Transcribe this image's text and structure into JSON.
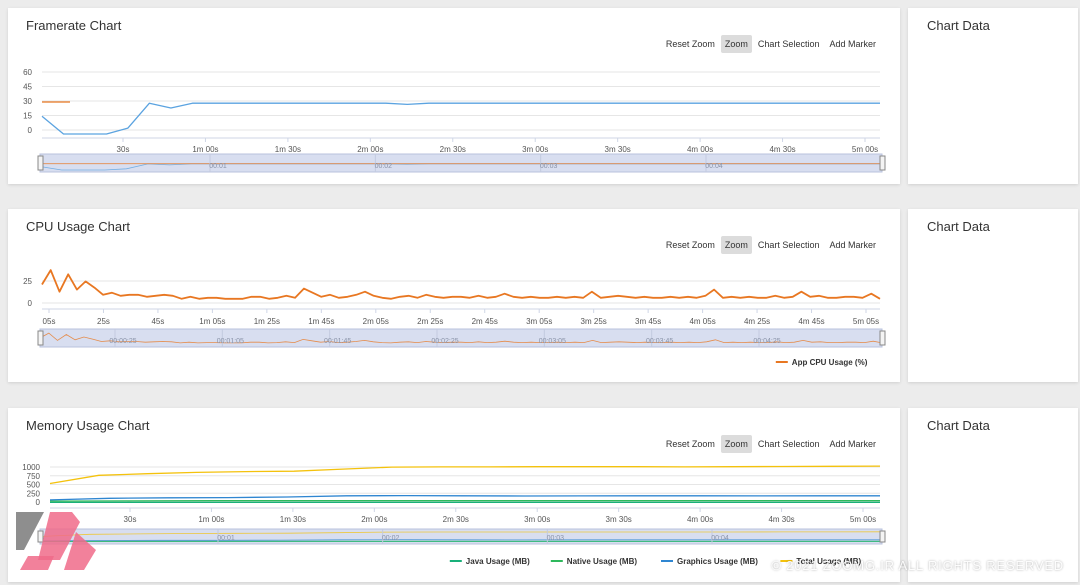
{
  "toolbar": {
    "reset": "Reset Zoom",
    "zoom": "Zoom",
    "selection": "Chart Selection",
    "marker": "Add Marker"
  },
  "side_panel_title": "Chart Data",
  "watermark": "© 2021 ZOOMG.IR ALL RIGHTS RESERVED",
  "chart_data": [
    {
      "type": "line",
      "title": "Framerate Chart",
      "xlabel": "",
      "ylabel": "",
      "y_ticks": [
        "60",
        "45",
        "30",
        "15",
        "0"
      ],
      "ylim": [
        0,
        60
      ],
      "x_ticks": [
        "30s",
        "1m 00s",
        "1m 30s",
        "2m 00s",
        "2m 30s",
        "3m 00s",
        "3m 30s",
        "4m 00s",
        "4m 30s",
        "5m 00s"
      ],
      "navigator_ticks": [
        "00:01",
        "00:02",
        "00:03",
        "00:04"
      ],
      "grid": true,
      "legend": [],
      "series": [
        {
          "color": "#5ba3e0",
          "values": [
            15,
            0,
            0,
            0,
            5,
            26,
            22,
            26,
            26,
            26,
            26,
            26,
            26,
            26,
            26,
            26,
            26,
            25,
            26,
            26,
            26,
            26,
            26,
            26,
            26,
            26,
            26,
            26,
            26,
            26,
            26,
            26,
            26,
            26,
            26,
            26,
            26,
            26,
            26,
            26
          ]
        },
        {
          "color": "#e87722",
          "values": [
            27,
            27,
            27,
            27,
            27
          ]
        }
      ]
    },
    {
      "type": "line",
      "title": "CPU Usage Chart",
      "xlabel": "",
      "ylabel": "",
      "y_ticks": [
        "25",
        "0"
      ],
      "ylim": [
        0,
        40
      ],
      "x_ticks": [
        "05s",
        "25s",
        "45s",
        "1m 05s",
        "1m 25s",
        "1m 45s",
        "2m 05s",
        "2m 25s",
        "2m 45s",
        "3m 05s",
        "3m 25s",
        "3m 45s",
        "4m 05s",
        "4m 25s",
        "4m 45s",
        "5m 05s"
      ],
      "navigator_ticks": [
        "00:00:25",
        "00:01:05",
        "00:01:45",
        "00:02:25",
        "00:03:05",
        "00:03:45",
        "00:04:25"
      ],
      "grid": true,
      "legend": [
        "App CPU Usage (%)"
      ],
      "series": [
        {
          "name": "App CPU Usage (%)",
          "color": "#e87722",
          "values": [
            20,
            34,
            13,
            30,
            15,
            23,
            17,
            10,
            12,
            9,
            10,
            10,
            8,
            9,
            10,
            9,
            6,
            8,
            6,
            7,
            7,
            6,
            6,
            6,
            8,
            8,
            6,
            7,
            9,
            7,
            16,
            12,
            8,
            10,
            7,
            8,
            10,
            13,
            9,
            7,
            6,
            8,
            9,
            7,
            10,
            8,
            7,
            8,
            8,
            7,
            9,
            7,
            8,
            11,
            8,
            7,
            8,
            7,
            7,
            8,
            7,
            8,
            7,
            13,
            7,
            8,
            9,
            8,
            7,
            8,
            7,
            7,
            8,
            7,
            8,
            7,
            9,
            15,
            7,
            8,
            7,
            8,
            7,
            7,
            9,
            7,
            8,
            13,
            8,
            9,
            7,
            7,
            8,
            8,
            7,
            11,
            6
          ]
        }
      ]
    },
    {
      "type": "line",
      "title": "Memory Usage Chart",
      "xlabel": "",
      "ylabel": "",
      "y_ticks": [
        "1000",
        "750",
        "500",
        "250",
        "0"
      ],
      "ylim": [
        0,
        1000
      ],
      "x_ticks": [
        "30s",
        "1m 00s",
        "1m 30s",
        "2m 00s",
        "2m 30s",
        "3m 00s",
        "3m 30s",
        "4m 00s",
        "4m 30s",
        "5m 00s"
      ],
      "navigator_ticks": [
        "00:01",
        "00:02",
        "00:03",
        "00:04"
      ],
      "grid": true,
      "legend": [
        "Java Usage (MB)",
        "Native Usage (MB)",
        "Graphics Usage (MB)",
        "Total Usage (MB)"
      ],
      "series": [
        {
          "name": "Java Usage (MB)",
          "color": "#19b07a",
          "values": [
            40,
            40,
            40,
            40,
            40,
            40,
            40,
            40,
            40,
            40,
            40
          ]
        },
        {
          "name": "Native Usage (MB)",
          "color": "#2eb85c",
          "values": [
            70,
            75,
            80,
            80,
            80,
            80,
            80,
            80,
            80,
            80,
            80
          ]
        },
        {
          "name": "Graphics Usage (MB)",
          "color": "#2f86d1",
          "values": [
            100,
            140,
            150,
            155,
            170,
            200,
            205,
            200,
            195,
            198,
            200,
            200,
            198,
            200,
            200
          ]
        },
        {
          "name": "Total Usage (MB)",
          "color": "#f4c20d",
          "values": [
            500,
            700,
            740,
            770,
            790,
            800,
            850,
            900,
            905,
            905,
            910,
            910,
            910,
            905,
            910,
            915,
            920,
            925
          ]
        }
      ]
    }
  ]
}
